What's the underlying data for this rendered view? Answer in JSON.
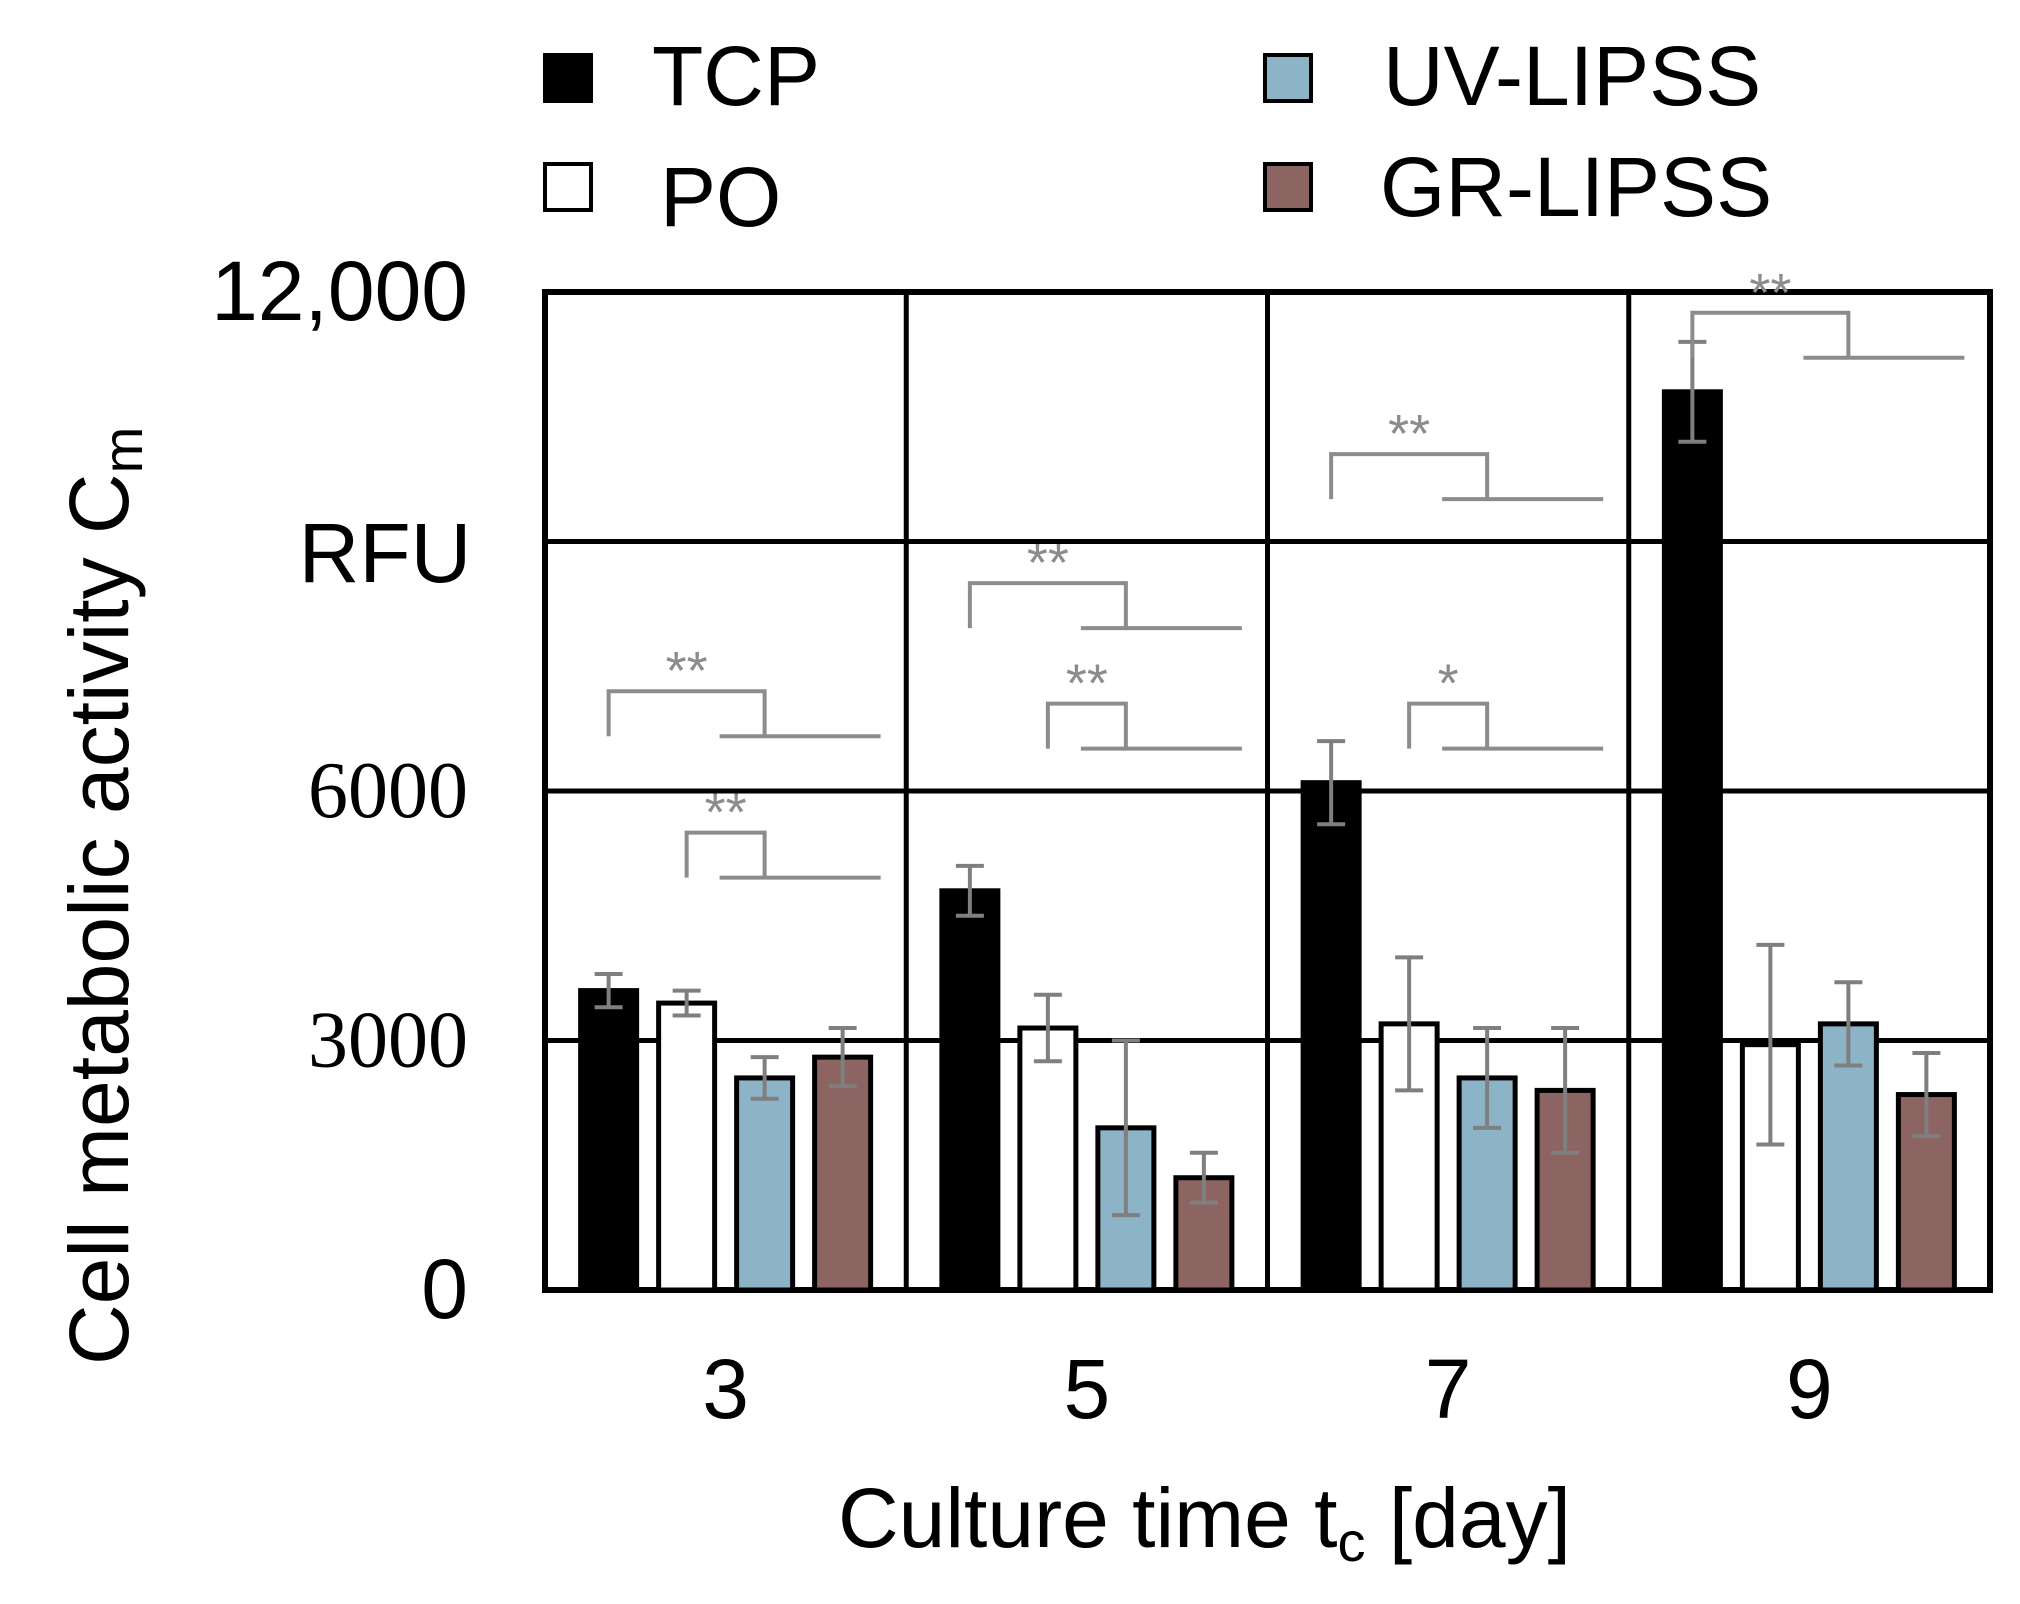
{
  "chart_data": {
    "type": "bar",
    "categories": [
      "3",
      "5",
      "7",
      "9"
    ],
    "xlabel_main": "Culture time t",
    "xlabel_sub": "c",
    "xlabel_unit": " [day]",
    "ylabel_main": "Cell metabolic activity C",
    "ylabel_sub": "m",
    "ylabel_unit": "RFU",
    "ylim": [
      0,
      12000
    ],
    "yticks": [
      {
        "value": 12000,
        "label": "12,000"
      },
      {
        "value": 9000,
        "label": ""
      },
      {
        "value": 6000,
        "label": "6000"
      },
      {
        "value": 3000,
        "label": "3000"
      },
      {
        "value": 0,
        "label": "0"
      }
    ],
    "grid": true,
    "legend_position": "top",
    "series": [
      {
        "name": "TCP",
        "color": "#000000",
        "values": [
          3600,
          4800,
          6100,
          10800
        ],
        "errors": [
          200,
          300,
          500,
          600
        ]
      },
      {
        "name": "PO",
        "color": "#ffffff",
        "values": [
          3450,
          3150,
          3200,
          2950
        ],
        "errors": [
          150,
          400,
          800,
          1200
        ]
      },
      {
        "name": "UV-LIPSS",
        "color": "#8db3c7",
        "values": [
          2550,
          1950,
          2550,
          3200
        ],
        "errors": [
          250,
          1050,
          600,
          500
        ]
      },
      {
        "name": "GR-LIPSS",
        "color": "#8c6462",
        "values": [
          2800,
          1350,
          2400,
          2350
        ],
        "errors": [
          350,
          300,
          750,
          500
        ]
      }
    ],
    "significance": [
      {
        "group": 0,
        "from_series": 0,
        "to_series": 3,
        "bracket_value": 7200,
        "label": "**"
      },
      {
        "group": 0,
        "from_series": 1,
        "to_series": 3,
        "bracket_value": 5500,
        "label": "**"
      },
      {
        "group": 1,
        "from_series": 0,
        "to_series": 3,
        "bracket_value": 8500,
        "label": "**"
      },
      {
        "group": 1,
        "from_series": 1,
        "to_series": 3,
        "bracket_value": 7050,
        "label": "**"
      },
      {
        "group": 2,
        "from_series": 0,
        "to_series": 3,
        "bracket_value": 10050,
        "label": "**"
      },
      {
        "group": 2,
        "from_series": 1,
        "to_series": 3,
        "bracket_value": 7050,
        "label": "*"
      },
      {
        "group": 3,
        "from_series": 0,
        "to_series": 3,
        "bracket_value": 11750,
        "label": "**"
      }
    ]
  }
}
